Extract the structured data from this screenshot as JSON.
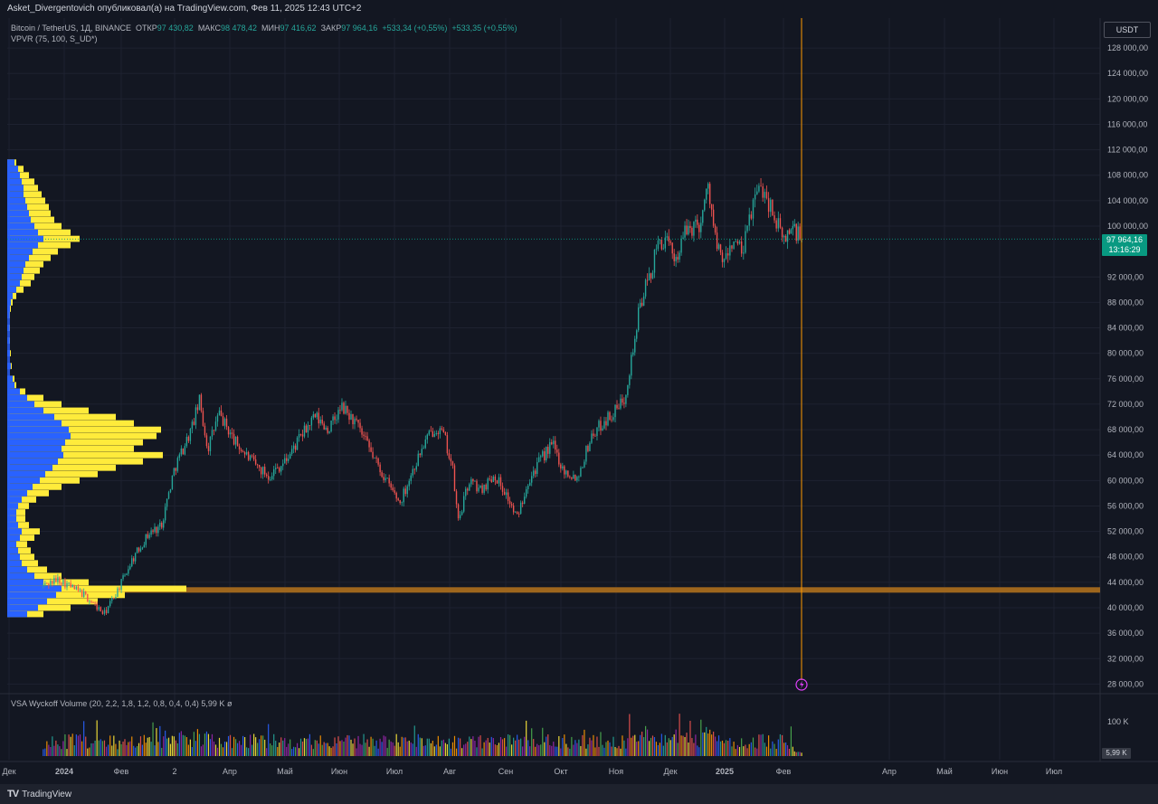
{
  "header": {
    "publish_line": "Asket_Divergentovich опубликовал(а) на TradingView.com, Фев 11, 2025 12:43 UTC+2"
  },
  "legend": {
    "symbol": "Bitcoin / TetherUS, 1Д, BINANCE",
    "open_label": "ОТКР",
    "open_value": "97 430,82",
    "high_label": "МАКС",
    "high_value": "98 478,42",
    "low_label": "МИН",
    "low_value": "97 416,62",
    "close_label": "ЗАКР",
    "close_value": "97 964,16",
    "change": "+533,34 (+0,55%)",
    "change2": "+533,35 (+0,55%)",
    "indicator": "VPVR (75, 100, S_UD*)"
  },
  "vsa": {
    "label": "VSA Wyckoff Volume (20, 2,2, 1,8, 1,2, 0,8, 0,4, 0,4)",
    "value": "5,99 K",
    "eye": "ø",
    "axis_label": "100 K",
    "tag": "5,99 K"
  },
  "currency": "USDT",
  "price_tag": {
    "price": "97 964,16",
    "countdown": "13:16:29"
  },
  "footer": {
    "logo_text": "TradingView"
  },
  "colors": {
    "background": "#131722",
    "up": "#26a69a",
    "down": "#ef5350",
    "vp_up": "#2962ff",
    "vp_down": "#ffeb3b",
    "support": "#a56a1e",
    "marker_line": "#ff9800"
  },
  "chart_data": {
    "type": "candlestick",
    "y_axis": {
      "min": 26000,
      "max": 130000,
      "tick_labels": [
        "128 000,00",
        "124 000,00",
        "120 000,00",
        "116 000,00",
        "112 000,00",
        "108 000,00",
        "104 000,00",
        "100 000,00",
        "92 000,00",
        "88 000,00",
        "84 000,00",
        "80 000,00",
        "76 000,00",
        "72 000,00",
        "68 000,00",
        "64 000,00",
        "60 000,00",
        "56 000,00",
        "52 000,00",
        "48 000,00",
        "44 000,00",
        "40 000,00",
        "36 000,00",
        "32 000,00",
        "28 000,00"
      ],
      "tick_values": [
        128000,
        124000,
        120000,
        116000,
        112000,
        108000,
        104000,
        100000,
        92000,
        88000,
        84000,
        80000,
        76000,
        72000,
        68000,
        64000,
        60000,
        56000,
        52000,
        48000,
        44000,
        40000,
        36000,
        32000,
        28000
      ]
    },
    "x_axis": {
      "tick_labels": [
        "Дек",
        "2024",
        "Фев",
        "2",
        "Апр",
        "Май",
        "Июн",
        "Июл",
        "Авг",
        "Сен",
        "Окт",
        "Ноя",
        "Дек",
        "2025",
        "Фев",
        "Апр",
        "Май",
        "Июн",
        "Июл"
      ],
      "tick_months_from_dec2023": [
        0,
        1,
        2,
        3,
        4,
        5,
        6,
        7,
        8,
        9,
        10,
        11,
        12,
        13,
        14,
        16,
        17,
        18,
        19
      ]
    },
    "last_price": 97964.16,
    "support_level": 42800,
    "monthly_closes_usd": [
      42000,
      42500,
      61000,
      71300,
      63500,
      67500,
      62700,
      64600,
      58900,
      63300,
      70200,
      96400,
      93400,
      102400,
      97964
    ],
    "monthly_ranges_usd": [
      [
        38500,
        44700
      ],
      [
        38500,
        48900
      ],
      [
        41800,
        63000
      ],
      [
        59200,
        73700
      ],
      [
        56500,
        72800
      ],
      [
        56600,
        71900
      ],
      [
        58400,
        71900
      ],
      [
        53500,
        69900
      ],
      [
        49000,
        65600
      ],
      [
        52600,
        64700
      ],
      [
        58900,
        73600
      ],
      [
        66800,
        99800
      ],
      [
        90500,
        108400
      ],
      [
        89200,
        109600
      ],
      [
        91300,
        102500
      ]
    ],
    "volume_profile_bins_usd": [
      {
        "from": 38000,
        "to": 46000,
        "level": "high"
      },
      {
        "from": 46000,
        "to": 57000,
        "level": "low"
      },
      {
        "from": 57000,
        "to": 73000,
        "level": "high"
      },
      {
        "from": 73000,
        "to": 90000,
        "level": "very-low"
      },
      {
        "from": 90000,
        "to": 110000,
        "level": "medium"
      }
    ],
    "volume_axis_label": "100 K"
  }
}
